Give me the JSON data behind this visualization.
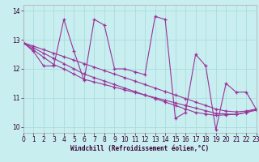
{
  "xlabel": "Windchill (Refroidissement éolien,°C)",
  "xlim": [
    0,
    23
  ],
  "ylim": [
    9.8,
    14.2
  ],
  "yticks": [
    10,
    11,
    12,
    13,
    14
  ],
  "xticks": [
    0,
    1,
    2,
    3,
    4,
    5,
    6,
    7,
    8,
    9,
    10,
    11,
    12,
    13,
    14,
    15,
    16,
    17,
    18,
    19,
    20,
    21,
    22,
    23
  ],
  "bg_color": "#c8eef0",
  "line_color": "#993399",
  "grid_color": "#aadddd",
  "series": [
    [
      12.9,
      12.6,
      12.1,
      12.1,
      13.7,
      12.6,
      11.6,
      13.7,
      13.5,
      12.0,
      12.0,
      11.9,
      11.8,
      13.8,
      13.7,
      10.3,
      10.5,
      12.5,
      12.1,
      9.9,
      11.5,
      11.2,
      11.2,
      10.6
    ],
    [
      12.9,
      12.65,
      12.4,
      12.15,
      12.0,
      11.82,
      11.64,
      11.55,
      11.46,
      11.37,
      11.28,
      11.19,
      11.1,
      11.01,
      10.92,
      10.83,
      10.74,
      10.65,
      10.56,
      10.47,
      10.45,
      10.43,
      10.5,
      10.58
    ],
    [
      12.9,
      12.72,
      12.54,
      12.36,
      12.18,
      12.0,
      11.82,
      11.7,
      11.58,
      11.46,
      11.34,
      11.22,
      11.1,
      10.98,
      10.86,
      10.74,
      10.62,
      10.5,
      10.45,
      10.4,
      10.42,
      10.44,
      10.5,
      10.62
    ],
    [
      12.9,
      12.78,
      12.66,
      12.54,
      12.42,
      12.3,
      12.18,
      12.06,
      11.94,
      11.82,
      11.7,
      11.58,
      11.46,
      11.34,
      11.22,
      11.1,
      10.98,
      10.86,
      10.74,
      10.62,
      10.55,
      10.52,
      10.55,
      10.62
    ]
  ]
}
